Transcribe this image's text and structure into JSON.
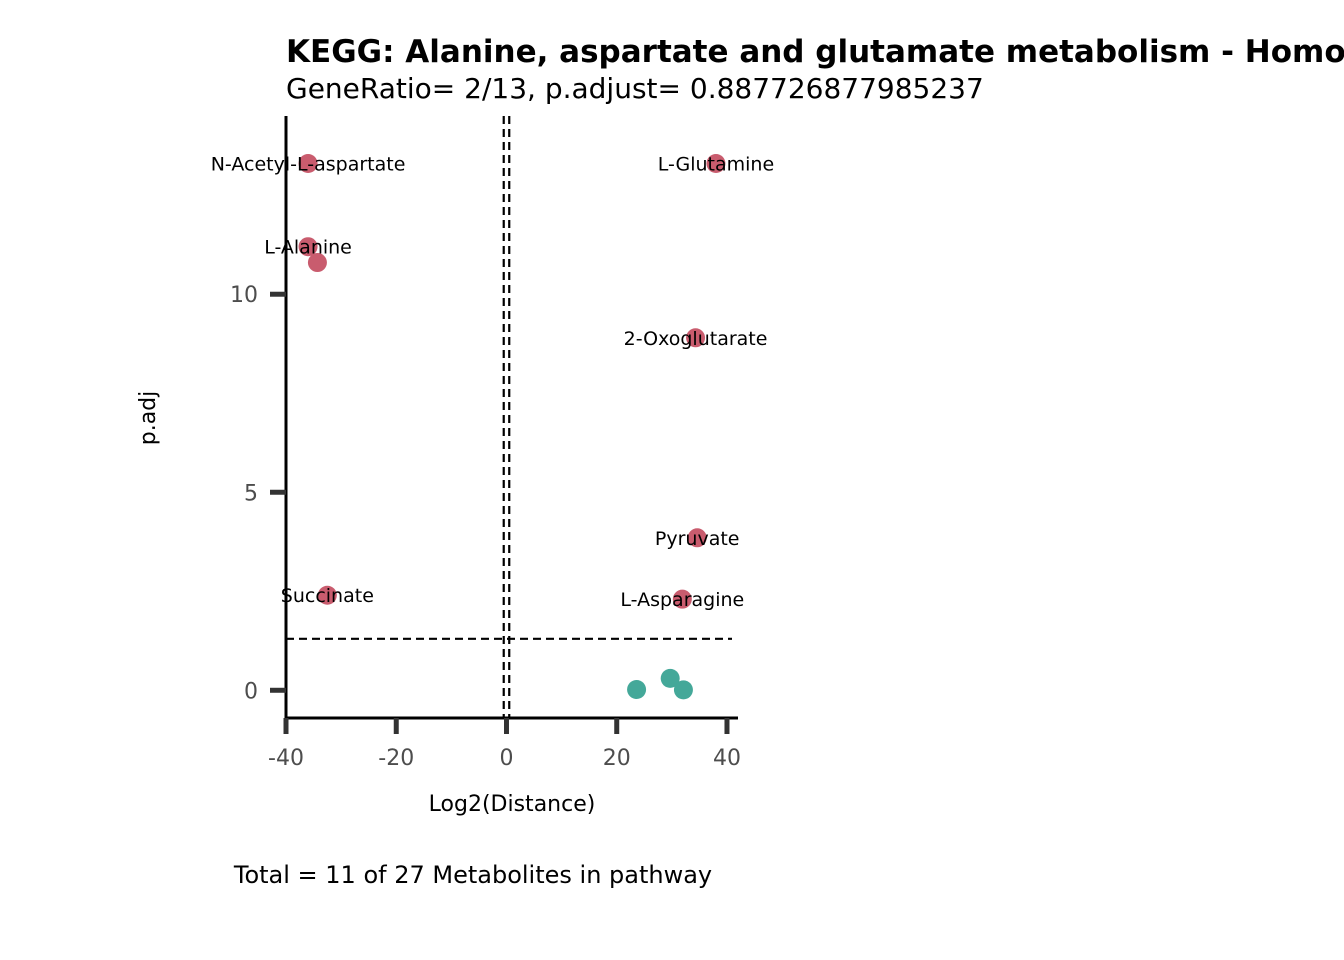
{
  "chart_data": {
    "type": "scatter",
    "title": "KEGG: Alanine, aspartate and glutamate metabolism - Homo sapiens (human)",
    "subtitle": "GeneRatio= 2/13, p.adjust= 0.887726877985237",
    "xlabel": "Log2(Distance)",
    "ylabel": "p.adj",
    "caption": "Total = 11 of 27 Metabolites in pathway",
    "xlim": [
      -40,
      42
    ],
    "ylim": [
      -0.7,
      14.5
    ],
    "xticks": [
      -40,
      -20,
      0,
      20,
      40
    ],
    "yticks": [
      0,
      5,
      10
    ],
    "threshold_x": [
      -0.5,
      0.5
    ],
    "threshold_y": 1.3,
    "grid": false,
    "colors": {
      "significant": "#c95c6e",
      "not_significant": "#44a899"
    },
    "points": [
      {
        "x": -36,
        "y": 13.3,
        "label": "N-Acetyl-L-aspartate",
        "significant": true
      },
      {
        "x": -36,
        "y": 11.2,
        "label": "L-Alanine",
        "significant": true
      },
      {
        "x": -34.3,
        "y": 10.8,
        "label": "",
        "significant": true
      },
      {
        "x": -32.5,
        "y": 2.4,
        "label": "Succinate",
        "significant": true
      },
      {
        "x": 38,
        "y": 13.3,
        "label": "L-Glutamine",
        "significant": true
      },
      {
        "x": 34.3,
        "y": 8.9,
        "label": "2-Oxoglutarate",
        "significant": true
      },
      {
        "x": 34.6,
        "y": 3.85,
        "label": "Pyruvate",
        "significant": true
      },
      {
        "x": 31.9,
        "y": 2.3,
        "label": "L-Asparagine",
        "significant": true
      },
      {
        "x": 23.6,
        "y": 0.02,
        "label": "",
        "significant": false
      },
      {
        "x": 29.7,
        "y": 0.3,
        "label": "",
        "significant": false
      },
      {
        "x": 32.1,
        "y": 0.01,
        "label": "",
        "significant": false
      }
    ]
  }
}
